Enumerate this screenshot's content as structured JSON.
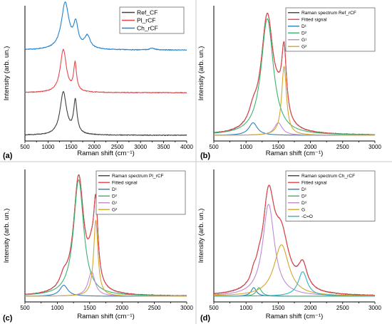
{
  "panel_letters": [
    "(a)",
    "(b)",
    "(c)",
    "(d)"
  ],
  "chart_data": [
    {
      "panel": "(a)",
      "type": "line",
      "xlabel": "Raman shift (cm⁻¹)",
      "ylabel": "Intensity (arb. un.)",
      "xlim": [
        500,
        4000
      ],
      "xticks": [
        500,
        1000,
        1500,
        2000,
        2500,
        3000,
        3500,
        4000
      ],
      "ylim": [
        0,
        1
      ],
      "y_ticks_labeled": false,
      "grid": false,
      "legend_position": "top-right",
      "stacked_offsets": true,
      "series": [
        {
          "name": "Ref_CF",
          "color": "#404040",
          "offset": 0.0,
          "peaks": [
            {
              "center": 1330,
              "amp": 0.34,
              "fwhm": 170
            },
            {
              "center": 1590,
              "amp": 0.26,
              "fwhm": 90
            }
          ],
          "baseline_end": 4000
        },
        {
          "name": "Pl_rCF",
          "color": "#e8474d",
          "offset": 0.34,
          "peaks": [
            {
              "center": 1330,
              "amp": 0.34,
              "fwhm": 160
            },
            {
              "center": 1585,
              "amp": 0.22,
              "fwhm": 75
            }
          ],
          "baseline_end": 4000
        },
        {
          "name": "Ch_rCF",
          "color": "#2383d0",
          "offset": 0.68,
          "peaks": [
            {
              "center": 1370,
              "amp": 0.37,
              "fwhm": 200
            },
            {
              "center": 1600,
              "amp": 0.18,
              "fwhm": 120
            },
            {
              "center": 1850,
              "amp": 0.1,
              "fwhm": 150
            },
            {
              "center": 3250,
              "amp": 0.015,
              "fwhm": 120
            }
          ],
          "baseline_end": 4000
        }
      ]
    },
    {
      "panel": "(b)",
      "type": "line",
      "xlabel": "Raman shift (cm⁻¹)",
      "ylabel": "Intensity (arb. un.)",
      "xlim": [
        500,
        3000
      ],
      "xticks": [
        500,
        1000,
        1500,
        2000,
        2500,
        3000
      ],
      "ylim": [
        0,
        1
      ],
      "y_ticks_labeled": false,
      "grid": false,
      "legend_position": "top-right",
      "series": [
        {
          "name": "Raman spectrum Ref_rCF",
          "color": "#404040",
          "kind": "measured",
          "peaks": [
            {
              "center": 1330,
              "amp": 0.93,
              "fwhm": 230
            },
            {
              "center": 1590,
              "amp": 0.55,
              "fwhm": 90
            },
            {
              "center": 1110,
              "amp": 0.1,
              "fwhm": 160
            },
            {
              "center": 1500,
              "amp": 0.1,
              "fwhm": 150
            }
          ]
        },
        {
          "name": "Fitted signal",
          "color": "#e8474d",
          "kind": "fit",
          "peaks": [
            {
              "center": 1330,
              "amp": 0.93,
              "fwhm": 230
            },
            {
              "center": 1590,
              "amp": 0.55,
              "fwhm": 90
            },
            {
              "center": 1110,
              "amp": 0.1,
              "fwhm": 160
            },
            {
              "center": 1500,
              "amp": 0.1,
              "fwhm": 150
            }
          ]
        },
        {
          "name": "D¹",
          "color": "#2d7fb8",
          "kind": "component",
          "peaks": [
            {
              "center": 1110,
              "amp": 0.1,
              "fwhm": 160
            }
          ]
        },
        {
          "name": "D²",
          "color": "#3cb371",
          "kind": "component",
          "peaks": [
            {
              "center": 1330,
              "amp": 0.93,
              "fwhm": 230
            }
          ]
        },
        {
          "name": "G¹",
          "color": "#c08ad6",
          "kind": "component",
          "peaks": [
            {
              "center": 1500,
              "amp": 0.1,
              "fwhm": 150
            }
          ]
        },
        {
          "name": "G²",
          "color": "#d4a72c",
          "kind": "component",
          "peaks": [
            {
              "center": 1590,
              "amp": 0.55,
              "fwhm": 90
            }
          ]
        }
      ]
    },
    {
      "panel": "(c)",
      "type": "line",
      "xlabel": "Raman shift (cm⁻¹)",
      "ylabel": "Intensity (arb. un.)",
      "xlim": [
        500,
        3000
      ],
      "xticks": [
        500,
        1000,
        1500,
        2000,
        2500,
        3000
      ],
      "ylim": [
        0,
        1
      ],
      "y_ticks_labeled": false,
      "grid": false,
      "legend_position": "top-right",
      "series": [
        {
          "name": "Raman spectrum Pl_rCF",
          "color": "#404040",
          "kind": "measured",
          "peaks": [
            {
              "center": 1330,
              "amp": 0.95,
              "fwhm": 190
            },
            {
              "center": 1595,
              "amp": 0.62,
              "fwhm": 80
            },
            {
              "center": 1100,
              "amp": 0.09,
              "fwhm": 150
            },
            {
              "center": 1530,
              "amp": 0.2,
              "fwhm": 130
            }
          ]
        },
        {
          "name": "Fitted signal",
          "color": "#e8474d",
          "kind": "fit",
          "peaks": [
            {
              "center": 1330,
              "amp": 0.95,
              "fwhm": 190
            },
            {
              "center": 1595,
              "amp": 0.62,
              "fwhm": 80
            },
            {
              "center": 1100,
              "amp": 0.09,
              "fwhm": 150
            },
            {
              "center": 1530,
              "amp": 0.2,
              "fwhm": 130
            }
          ]
        },
        {
          "name": "D¹",
          "color": "#2d7fb8",
          "kind": "component",
          "peaks": [
            {
              "center": 1100,
              "amp": 0.09,
              "fwhm": 150
            }
          ]
        },
        {
          "name": "D²",
          "color": "#3cb371",
          "kind": "component",
          "peaks": [
            {
              "center": 1330,
              "amp": 0.95,
              "fwhm": 190
            }
          ]
        },
        {
          "name": "G¹",
          "color": "#c08ad6",
          "kind": "component",
          "peaks": [
            {
              "center": 1530,
              "amp": 0.2,
              "fwhm": 130
            }
          ]
        },
        {
          "name": "G²",
          "color": "#d4a72c",
          "kind": "component",
          "peaks": [
            {
              "center": 1595,
              "amp": 0.62,
              "fwhm": 80
            }
          ]
        }
      ]
    },
    {
      "panel": "(d)",
      "type": "line",
      "xlabel": "Raman shift (cm⁻¹)",
      "ylabel": "Intensity (arb. un.)",
      "xlim": [
        500,
        3000
      ],
      "xticks": [
        500,
        1000,
        1500,
        2000,
        2500,
        3000
      ],
      "ylim": [
        0,
        1
      ],
      "y_ticks_labeled": false,
      "grid": false,
      "legend_position": "top-right",
      "series": [
        {
          "name": "Raman spectrum Ch_rCF",
          "color": "#404040",
          "kind": "measured",
          "peaks": [
            {
              "center": 1350,
              "amp": 0.75,
              "fwhm": 220
            },
            {
              "center": 1550,
              "amp": 0.42,
              "fwhm": 280
            },
            {
              "center": 1880,
              "amp": 0.2,
              "fwhm": 170
            },
            {
              "center": 1120,
              "amp": 0.07,
              "fwhm": 100
            },
            {
              "center": 1200,
              "amp": 0.07,
              "fwhm": 100
            }
          ]
        },
        {
          "name": "Fitted signal",
          "color": "#e8474d",
          "kind": "fit",
          "peaks": [
            {
              "center": 1350,
              "amp": 0.75,
              "fwhm": 220
            },
            {
              "center": 1550,
              "amp": 0.42,
              "fwhm": 280
            },
            {
              "center": 1880,
              "amp": 0.2,
              "fwhm": 170
            },
            {
              "center": 1120,
              "amp": 0.07,
              "fwhm": 100
            },
            {
              "center": 1200,
              "amp": 0.07,
              "fwhm": 100
            }
          ]
        },
        {
          "name": "D¹",
          "color": "#2d7fb8",
          "kind": "component",
          "peaks": [
            {
              "center": 1120,
              "amp": 0.07,
              "fwhm": 100
            }
          ]
        },
        {
          "name": "D²",
          "color": "#3cb371",
          "kind": "component",
          "peaks": [
            {
              "center": 1200,
              "amp": 0.07,
              "fwhm": 100
            }
          ]
        },
        {
          "name": "D³",
          "color": "#c08ad6",
          "kind": "component",
          "peaks": [
            {
              "center": 1350,
              "amp": 0.75,
              "fwhm": 220
            }
          ]
        },
        {
          "name": "G",
          "color": "#d4a72c",
          "kind": "component",
          "peaks": [
            {
              "center": 1550,
              "amp": 0.42,
              "fwhm": 280
            }
          ]
        },
        {
          "name": "-C=O",
          "color": "#2bb5c0",
          "kind": "component",
          "peaks": [
            {
              "center": 1880,
              "amp": 0.2,
              "fwhm": 170
            }
          ]
        }
      ]
    }
  ]
}
